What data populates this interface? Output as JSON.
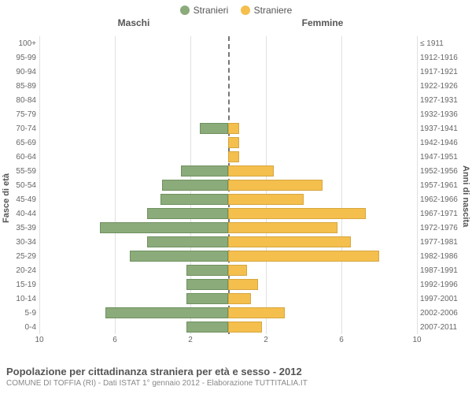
{
  "chart": {
    "type": "population-pyramid",
    "legend": {
      "left": {
        "label": "Stranieri",
        "color": "#8bab7a",
        "stroke": "#6f9160"
      },
      "right": {
        "label": "Straniere",
        "color": "#f4bf4d",
        "stroke": "#d6a63f"
      }
    },
    "headers": {
      "left": "Maschi",
      "right": "Femmine"
    },
    "axis_titles": {
      "left": "Fasce di età",
      "right": "Anni di nascita"
    },
    "x": {
      "max": 10,
      "ticks": [
        10,
        6,
        2,
        2,
        6,
        10
      ]
    },
    "grid_color": "#e0e0e0",
    "background_color": "#ffffff",
    "rows": [
      {
        "age": "100+",
        "birth": "≤ 1911",
        "m": 0,
        "f": 0
      },
      {
        "age": "95-99",
        "birth": "1912-1916",
        "m": 0,
        "f": 0
      },
      {
        "age": "90-94",
        "birth": "1917-1921",
        "m": 0,
        "f": 0
      },
      {
        "age": "85-89",
        "birth": "1922-1926",
        "m": 0,
        "f": 0
      },
      {
        "age": "80-84",
        "birth": "1927-1931",
        "m": 0,
        "f": 0
      },
      {
        "age": "75-79",
        "birth": "1932-1936",
        "m": 0,
        "f": 0
      },
      {
        "age": "70-74",
        "birth": "1937-1941",
        "m": 1.5,
        "f": 0.6
      },
      {
        "age": "65-69",
        "birth": "1942-1946",
        "m": 0,
        "f": 0.6
      },
      {
        "age": "60-64",
        "birth": "1947-1951",
        "m": 0,
        "f": 0.6
      },
      {
        "age": "55-59",
        "birth": "1952-1956",
        "m": 2.5,
        "f": 2.4
      },
      {
        "age": "50-54",
        "birth": "1957-1961",
        "m": 3.5,
        "f": 5.0
      },
      {
        "age": "45-49",
        "birth": "1962-1966",
        "m": 3.6,
        "f": 4.0
      },
      {
        "age": "40-44",
        "birth": "1967-1971",
        "m": 4.3,
        "f": 7.3
      },
      {
        "age": "35-39",
        "birth": "1972-1976",
        "m": 6.8,
        "f": 5.8
      },
      {
        "age": "30-34",
        "birth": "1977-1981",
        "m": 4.3,
        "f": 6.5
      },
      {
        "age": "25-29",
        "birth": "1982-1986",
        "m": 5.2,
        "f": 8.0
      },
      {
        "age": "20-24",
        "birth": "1987-1991",
        "m": 2.2,
        "f": 1.0
      },
      {
        "age": "15-19",
        "birth": "1992-1996",
        "m": 2.2,
        "f": 1.6
      },
      {
        "age": "10-14",
        "birth": "1997-2001",
        "m": 2.2,
        "f": 1.2
      },
      {
        "age": "5-9",
        "birth": "2002-2006",
        "m": 6.5,
        "f": 3.0
      },
      {
        "age": "0-4",
        "birth": "2007-2011",
        "m": 2.2,
        "f": 1.8
      }
    ],
    "title": "Popolazione per cittadinanza straniera per età e sesso - 2012",
    "subtitle": "COMUNE DI TOFFIA (RI) - Dati ISTAT 1° gennaio 2012 - Elaborazione TUTTITALIA.IT"
  }
}
